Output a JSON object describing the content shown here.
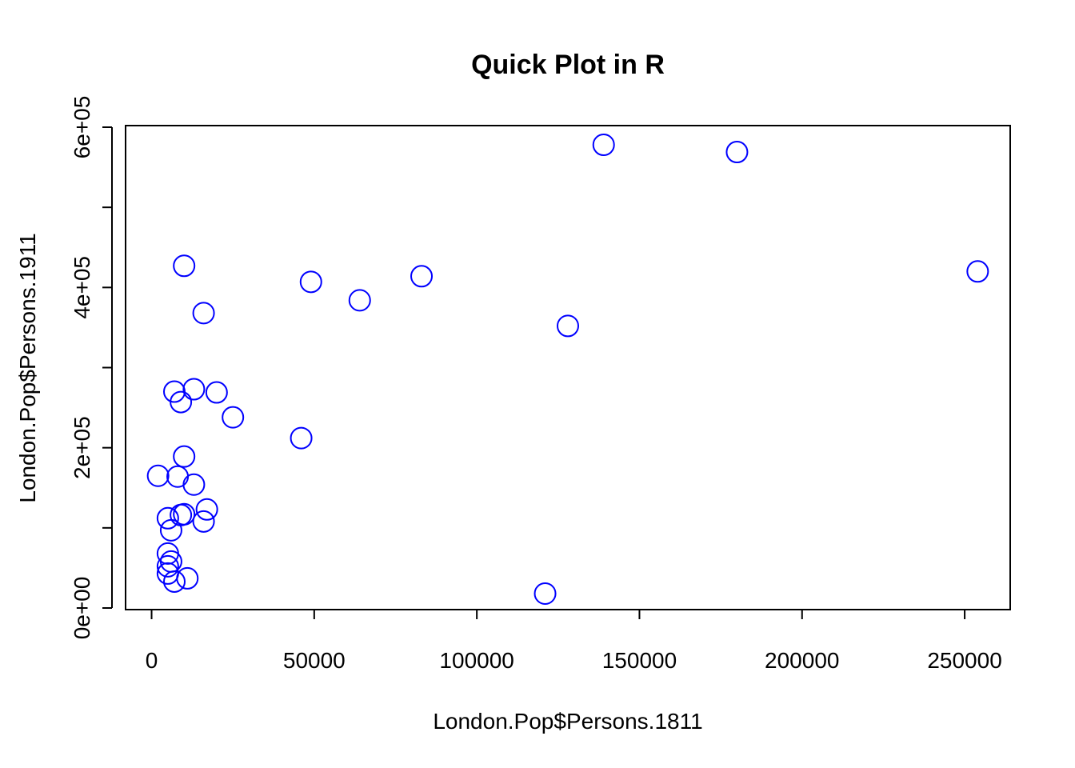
{
  "chart_data": {
    "type": "scatter",
    "title": "Quick Plot in R",
    "xlabel": "London.Pop$Persons.1811",
    "ylabel": "London.Pop$Persons.1911",
    "xlim": [
      -8000,
      264000
    ],
    "ylim": [
      -2000,
      602000
    ],
    "x_ticks": [
      {
        "value": 0,
        "label": "0"
      },
      {
        "value": 50000,
        "label": "50000"
      },
      {
        "value": 100000,
        "label": "100000"
      },
      {
        "value": 150000,
        "label": "150000"
      },
      {
        "value": 200000,
        "label": "200000"
      },
      {
        "value": 250000,
        "label": "250000"
      }
    ],
    "y_ticks": [
      {
        "value": 0,
        "label": "0e+00"
      },
      {
        "value": 100000,
        "label": ""
      },
      {
        "value": 200000,
        "label": "2e+05"
      },
      {
        "value": 300000,
        "label": ""
      },
      {
        "value": 400000,
        "label": "4e+05"
      },
      {
        "value": 500000,
        "label": ""
      },
      {
        "value": 600000,
        "label": "6e+05"
      }
    ],
    "grid": false,
    "marker": "open-circle",
    "point_color": "#0000ff",
    "x": [
      139000,
      180000,
      254000,
      10000,
      49000,
      83000,
      64000,
      16000,
      128000,
      7000,
      13000,
      20000,
      9000,
      25000,
      46000,
      10000,
      2000,
      8000,
      13000,
      9000,
      10000,
      17000,
      5000,
      6000,
      16000,
      5000,
      6000,
      5000,
      5000,
      11000,
      7000,
      121000
    ],
    "y": [
      578000,
      569000,
      420000,
      427000,
      407000,
      414000,
      384000,
      368000,
      352000,
      270000,
      273000,
      269000,
      257000,
      238000,
      212000,
      189000,
      165000,
      164000,
      154000,
      116000,
      117000,
      123000,
      112000,
      97000,
      108000,
      68000,
      58000,
      52000,
      43000,
      37000,
      33000,
      18000
    ]
  }
}
